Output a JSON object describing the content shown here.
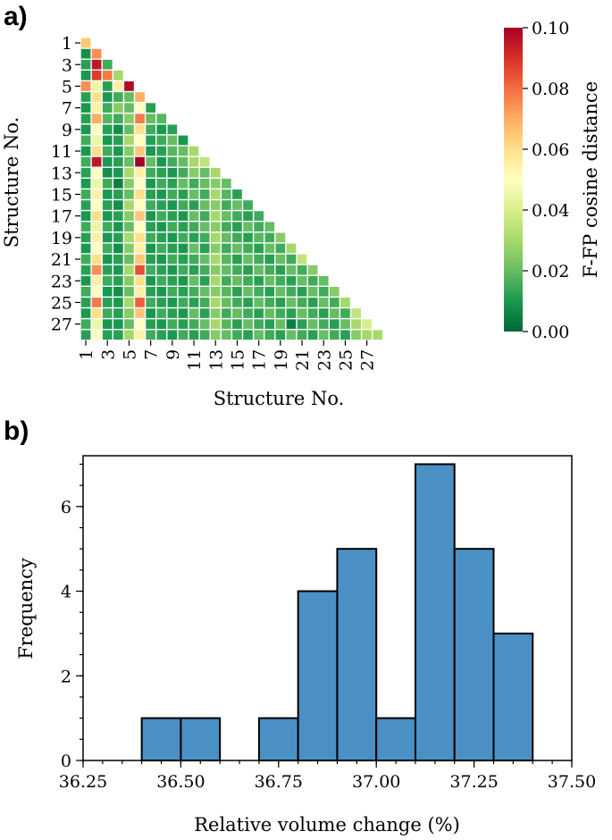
{
  "colors": {
    "bar_fill": "#4a90c4",
    "bar_edge": "#000000",
    "colormap": [
      "#006837",
      "#1a9850",
      "#66bd63",
      "#a6d96a",
      "#d9ef8b",
      "#ffffbf",
      "#fee08b",
      "#fdae61",
      "#f46d43",
      "#d73027",
      "#a50026"
    ]
  },
  "panel_a_label": "a)",
  "panel_b_label": "b)",
  "chart_data": [
    {
      "type": "heatmap",
      "panel": "a)",
      "xlabel": "Structure No.",
      "ylabel": "Structure No.",
      "colorbar_label": "F-FP cosine distance",
      "colorbar_ticks": [
        "0.00",
        "0.02",
        "0.04",
        "0.06",
        "0.08",
        "0.10"
      ],
      "colorbar_tick_values": [
        0,
        0.02,
        0.04,
        0.06,
        0.08,
        0.1
      ],
      "vmin": 0,
      "vmax": 0.1,
      "n": 28,
      "x_tick_labels": [
        "1",
        "3",
        "5",
        "7",
        "9",
        "11",
        "13",
        "15",
        "17",
        "19",
        "21",
        "23",
        "25",
        "27"
      ],
      "y_tick_labels": [
        "1",
        "3",
        "5",
        "7",
        "9",
        "11",
        "13",
        "15",
        "17",
        "19",
        "21",
        "23",
        "25",
        "27"
      ],
      "cells": [
        [
          0.065
        ],
        [
          0.008,
          0.075
        ],
        [
          0.012,
          0.095,
          0.015
        ],
        [
          0.01,
          0.088,
          0.078,
          0.03
        ],
        [
          0.075,
          0.045,
          0.012,
          0.055,
          0.098
        ],
        [
          0.012,
          0.06,
          0.01,
          0.015,
          0.02,
          0.07
        ],
        [
          0.01,
          0.055,
          0.015,
          0.025,
          0.02,
          0.05,
          0.012
        ],
        [
          0.012,
          0.07,
          0.018,
          0.015,
          0.025,
          0.078,
          0.02,
          0.018
        ],
        [
          0.01,
          0.05,
          0.012,
          0.008,
          0.02,
          0.06,
          0.015,
          0.01,
          0.012
        ],
        [
          0.015,
          0.045,
          0.01,
          0.012,
          0.03,
          0.05,
          0.012,
          0.015,
          0.02,
          0.01
        ],
        [
          0.01,
          0.06,
          0.015,
          0.01,
          0.025,
          0.065,
          0.01,
          0.012,
          0.018,
          0.02,
          0.03
        ],
        [
          0.015,
          0.095,
          0.01,
          0.012,
          0.02,
          0.1,
          0.02,
          0.01,
          0.015,
          0.02,
          0.03,
          0.035
        ],
        [
          0.012,
          0.05,
          0.008,
          0.01,
          0.03,
          0.055,
          0.015,
          0.012,
          0.01,
          0.015,
          0.025,
          0.02,
          0.03
        ],
        [
          0.01,
          0.045,
          0.015,
          0.005,
          0.025,
          0.05,
          0.01,
          0.015,
          0.012,
          0.02,
          0.015,
          0.02,
          0.025,
          0.02
        ],
        [
          0.015,
          0.055,
          0.01,
          0.012,
          0.02,
          0.06,
          0.012,
          0.01,
          0.015,
          0.012,
          0.02,
          0.015,
          0.03,
          0.018,
          0.012
        ],
        [
          0.012,
          0.05,
          0.012,
          0.008,
          0.03,
          0.05,
          0.015,
          0.012,
          0.01,
          0.015,
          0.012,
          0.02,
          0.025,
          0.015,
          0.02,
          0.015
        ],
        [
          0.01,
          0.06,
          0.01,
          0.012,
          0.025,
          0.065,
          0.01,
          0.015,
          0.012,
          0.01,
          0.02,
          0.015,
          0.03,
          0.02,
          0.015,
          0.012,
          0.015
        ],
        [
          0.015,
          0.045,
          0.015,
          0.01,
          0.02,
          0.05,
          0.012,
          0.01,
          0.015,
          0.012,
          0.015,
          0.02,
          0.025,
          0.015,
          0.012,
          0.02,
          0.015,
          0.02
        ],
        [
          0.012,
          0.055,
          0.01,
          0.012,
          0.03,
          0.06,
          0.015,
          0.012,
          0.01,
          0.015,
          0.012,
          0.015,
          0.03,
          0.02,
          0.015,
          0.012,
          0.018,
          0.015,
          0.025
        ],
        [
          0.01,
          0.05,
          0.015,
          0.008,
          0.025,
          0.055,
          0.01,
          0.015,
          0.012,
          0.01,
          0.02,
          0.012,
          0.025,
          0.015,
          0.02,
          0.015,
          0.012,
          0.02,
          0.015,
          0.03
        ],
        [
          0.015,
          0.06,
          0.01,
          0.012,
          0.02,
          0.065,
          0.012,
          0.01,
          0.015,
          0.012,
          0.015,
          0.02,
          0.03,
          0.018,
          0.012,
          0.02,
          0.015,
          0.012,
          0.02,
          0.015,
          0.035
        ],
        [
          0.012,
          0.075,
          0.012,
          0.01,
          0.03,
          0.085,
          0.015,
          0.012,
          0.01,
          0.015,
          0.012,
          0.015,
          0.025,
          0.02,
          0.015,
          0.012,
          0.02,
          0.015,
          0.012,
          0.02,
          0.015,
          0.025
        ],
        [
          0.01,
          0.055,
          0.015,
          0.012,
          0.025,
          0.06,
          0.01,
          0.015,
          0.012,
          0.01,
          0.02,
          0.012,
          0.03,
          0.015,
          0.02,
          0.015,
          0.012,
          0.02,
          0.015,
          0.012,
          0.02,
          0.015,
          0.02
        ],
        [
          0.015,
          0.05,
          0.01,
          0.008,
          0.02,
          0.055,
          0.012,
          0.01,
          0.015,
          0.012,
          0.015,
          0.02,
          0.025,
          0.018,
          0.012,
          0.02,
          0.015,
          0.012,
          0.02,
          0.015,
          0.012,
          0.02,
          0.015,
          0.025
        ],
        [
          0.012,
          0.078,
          0.012,
          0.01,
          0.03,
          0.082,
          0.015,
          0.012,
          0.01,
          0.015,
          0.012,
          0.015,
          0.03,
          0.02,
          0.015,
          0.012,
          0.02,
          0.015,
          0.012,
          0.02,
          0.015,
          0.012,
          0.02,
          0.015,
          0.03
        ],
        [
          0.01,
          0.06,
          0.015,
          0.012,
          0.025,
          0.065,
          0.01,
          0.015,
          0.012,
          0.01,
          0.02,
          0.012,
          0.025,
          0.015,
          0.02,
          0.015,
          0.012,
          0.02,
          0.015,
          0.012,
          0.02,
          0.015,
          0.012,
          0.02,
          0.015,
          0.035
        ],
        [
          0.015,
          0.045,
          0.01,
          0.01,
          0.02,
          0.05,
          0.012,
          0.01,
          0.015,
          0.012,
          0.015,
          0.02,
          0.03,
          0.018,
          0.012,
          0.02,
          0.015,
          0.012,
          0.02,
          0.005,
          0.012,
          0.02,
          0.015,
          0.012,
          0.02,
          0.03,
          0.04
        ],
        [
          0.012,
          0.05,
          0.012,
          0.012,
          0.03,
          0.055,
          0.015,
          0.012,
          0.01,
          0.015,
          0.012,
          0.015,
          0.025,
          0.02,
          0.015,
          0.012,
          0.02,
          0.015,
          0.012,
          0.02,
          0.015,
          0.012,
          0.02,
          0.015,
          0.012,
          0.025,
          0.03,
          0.03
        ]
      ]
    },
    {
      "type": "bar",
      "subtype": "histogram",
      "panel": "b)",
      "xlabel": "Relative volume change (%)",
      "ylabel": "Frequency",
      "bin_edges": [
        36.4,
        36.5,
        36.6,
        36.7,
        36.8,
        36.9,
        37.0,
        37.1,
        37.2,
        37.3,
        37.4
      ],
      "values": [
        1,
        1,
        0,
        1,
        4,
        5,
        1,
        7,
        5,
        3
      ],
      "xlim": [
        36.25,
        37.5
      ],
      "ylim": [
        0,
        7.2
      ],
      "x_ticks": [
        36.25,
        36.5,
        36.75,
        37.0,
        37.25,
        37.5
      ],
      "x_tick_labels": [
        "36.25",
        "36.50",
        "36.75",
        "37.00",
        "37.25",
        "37.50"
      ],
      "y_ticks": [
        0,
        2,
        4,
        6
      ],
      "y_tick_labels": [
        "0",
        "2",
        "4",
        "6"
      ]
    }
  ]
}
